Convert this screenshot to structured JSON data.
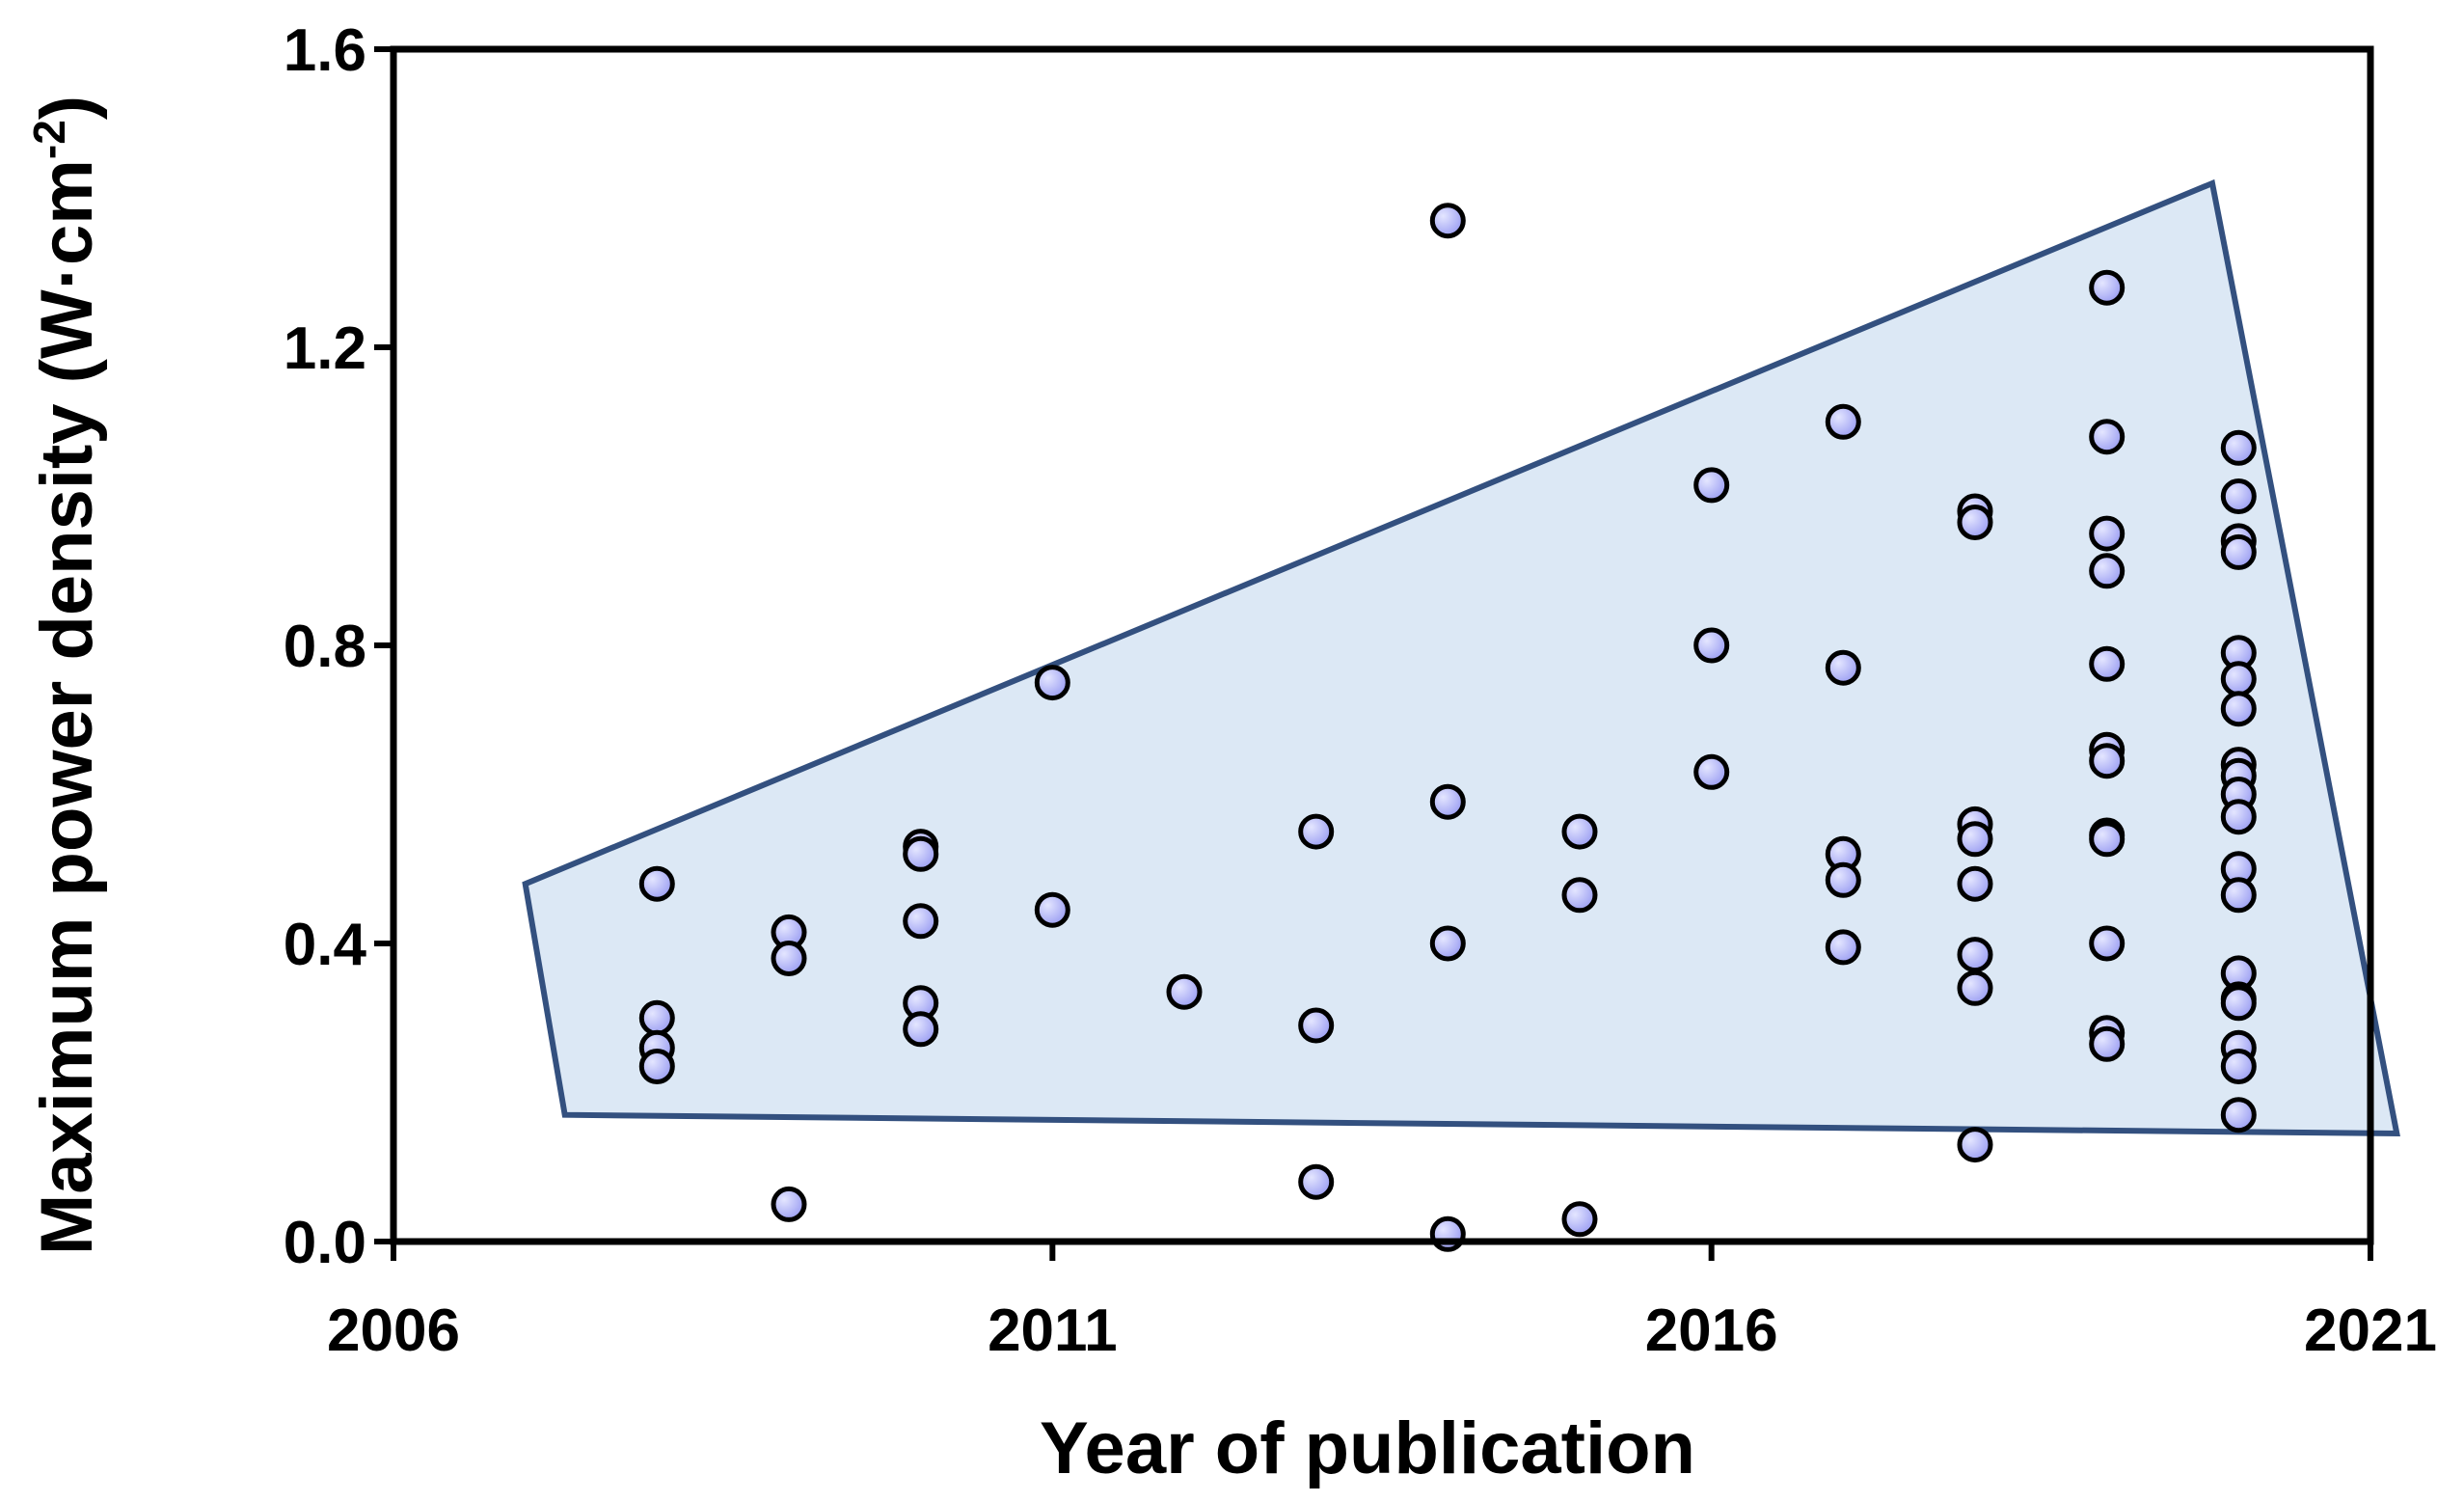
{
  "chart_data": {
    "type": "scatter",
    "xlabel": "Year of publication",
    "ylabel": {
      "main": "Maximum power density (W·cm",
      "superscript": "-2",
      "close": ")"
    },
    "xlim": [
      2006,
      2021
    ],
    "ylim": [
      0.0,
      1.6
    ],
    "x_ticks": [
      2006,
      2011,
      2016,
      2021
    ],
    "x_tick_labels": [
      "2006",
      "2011",
      "2016",
      "2021"
    ],
    "y_ticks": [
      0.0,
      0.4,
      0.8,
      1.2,
      1.6
    ],
    "y_tick_labels": [
      "0.0",
      "0.4",
      "0.8",
      "1.2",
      "1.6"
    ],
    "grid": false,
    "legend": "none",
    "colors": {
      "marker_fill": "#9a9df2",
      "marker_highlight": "#e4e6ff",
      "marker_stroke": "#000000",
      "envelope_fill": "#dce8f5",
      "envelope_stroke": "#33507f",
      "axis": "#000000"
    },
    "envelope": [
      [
        2007.0,
        0.48
      ],
      [
        2007.3,
        0.17
      ],
      [
        2021.2,
        0.145
      ],
      [
        2019.8,
        1.42
      ]
    ],
    "points": [
      [
        2008,
        0.48
      ],
      [
        2008,
        0.3
      ],
      [
        2008,
        0.26
      ],
      [
        2008,
        0.235
      ],
      [
        2009,
        0.415
      ],
      [
        2009,
        0.38
      ],
      [
        2009,
        0.05
      ],
      [
        2010,
        0.53
      ],
      [
        2010,
        0.52
      ],
      [
        2010,
        0.43
      ],
      [
        2010,
        0.32
      ],
      [
        2010,
        0.285
      ],
      [
        2011,
        0.75
      ],
      [
        2011,
        0.445
      ],
      [
        2012,
        0.335
      ],
      [
        2013,
        0.55
      ],
      [
        2013,
        0.29
      ],
      [
        2013,
        0.08
      ],
      [
        2014,
        1.37
      ],
      [
        2014,
        0.59
      ],
      [
        2014,
        0.4
      ],
      [
        2014,
        0.01
      ],
      [
        2015,
        0.55
      ],
      [
        2015,
        0.465
      ],
      [
        2015,
        0.03
      ],
      [
        2016,
        1.015
      ],
      [
        2016,
        0.8
      ],
      [
        2016,
        0.63
      ],
      [
        2017,
        1.1
      ],
      [
        2017,
        0.77
      ],
      [
        2017,
        0.52
      ],
      [
        2017,
        0.485
      ],
      [
        2017,
        0.395
      ],
      [
        2018,
        0.98
      ],
      [
        2018,
        0.965
      ],
      [
        2018,
        0.56
      ],
      [
        2018,
        0.54
      ],
      [
        2018,
        0.48
      ],
      [
        2018,
        0.385
      ],
      [
        2018,
        0.34
      ],
      [
        2018,
        0.13
      ],
      [
        2019,
        1.28
      ],
      [
        2019,
        1.08
      ],
      [
        2019,
        0.95
      ],
      [
        2019,
        0.9
      ],
      [
        2019,
        0.775
      ],
      [
        2019,
        0.66
      ],
      [
        2019,
        0.645
      ],
      [
        2019,
        0.545
      ],
      [
        2019,
        0.54
      ],
      [
        2019,
        0.4
      ],
      [
        2019,
        0.28
      ],
      [
        2019,
        0.265
      ],
      [
        2020,
        1.065
      ],
      [
        2020,
        1.0
      ],
      [
        2020,
        0.94
      ],
      [
        2020,
        0.925
      ],
      [
        2020,
        0.79
      ],
      [
        2020,
        0.755
      ],
      [
        2020,
        0.715
      ],
      [
        2020,
        0.64
      ],
      [
        2020,
        0.625
      ],
      [
        2020,
        0.6
      ],
      [
        2020,
        0.57
      ],
      [
        2020,
        0.5
      ],
      [
        2020,
        0.465
      ],
      [
        2020,
        0.36
      ],
      [
        2020,
        0.325
      ],
      [
        2020,
        0.32
      ],
      [
        2020,
        0.26
      ],
      [
        2020,
        0.235
      ],
      [
        2020,
        0.17
      ]
    ]
  }
}
